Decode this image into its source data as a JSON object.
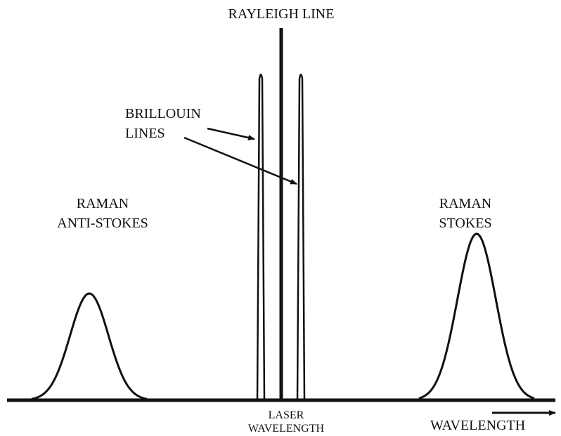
{
  "labels": {
    "rayleigh": "RAYLEIGH LINE",
    "brillouin": [
      "BRILLOUIN",
      "LINES"
    ],
    "raman_anti_stokes": [
      "RAMAN",
      "ANTI-STOKES"
    ],
    "raman_stokes": [
      "RAMAN",
      "STOKES"
    ],
    "laser": [
      "LASER",
      "WAVELENGTH"
    ],
    "axis": "WAVELENGTH"
  }
}
